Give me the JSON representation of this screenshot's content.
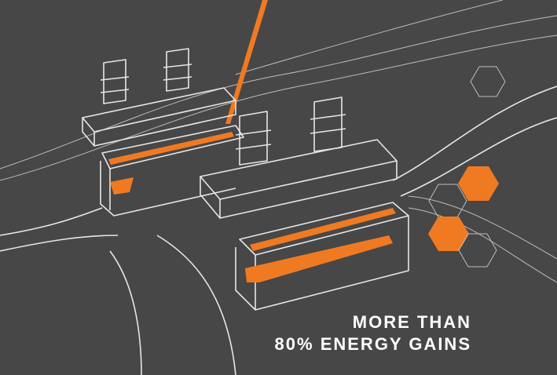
{
  "caption": {
    "line1": "MORE THAN",
    "line2": "80% ENERGY GAINS"
  }
}
